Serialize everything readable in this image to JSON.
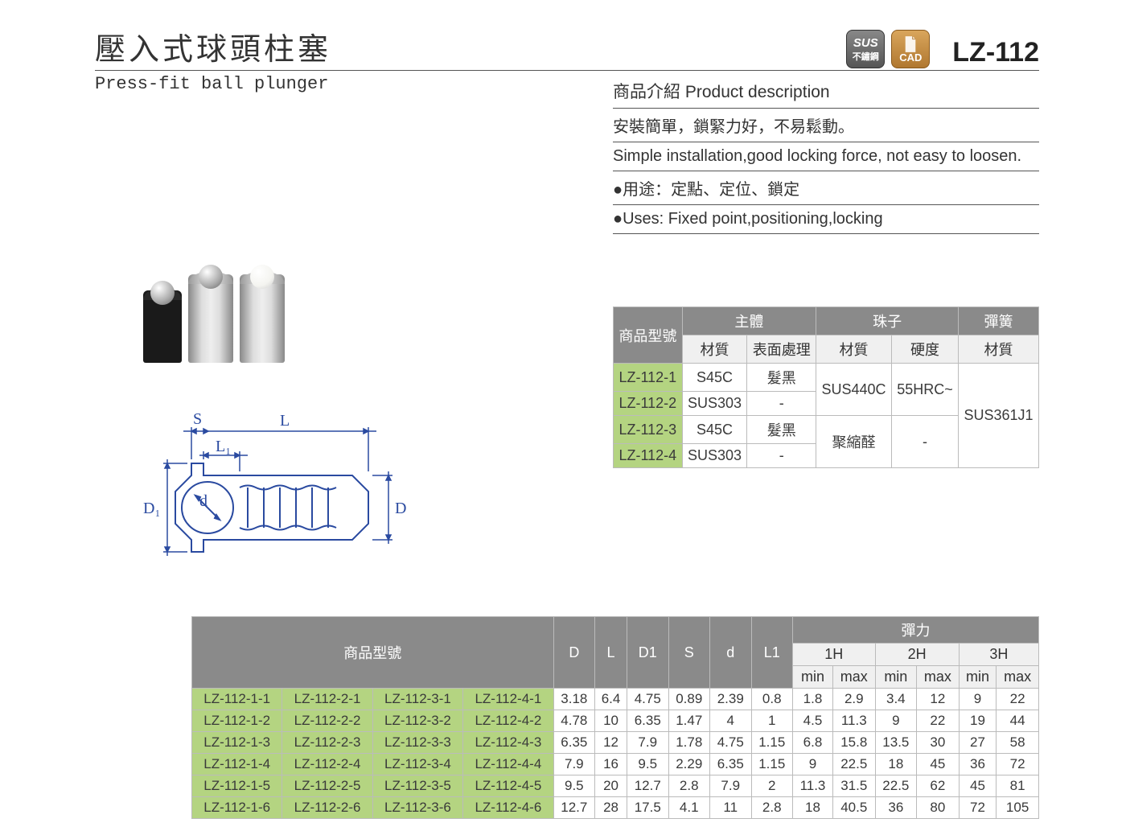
{
  "header": {
    "title_cn": "壓入式球頭柱塞",
    "model_code": "LZ-112",
    "badge_sus_top": "SUS",
    "badge_sus_bot": "不鏽鋼",
    "badge_cad": "CAD"
  },
  "subtitle": {
    "en": "Press-fit ball plunger"
  },
  "description": {
    "heading": "商品介紹 Product description",
    "line1": "安裝簡單，鎖緊力好，不易鬆動。",
    "line2": "Simple installation,good locking force, not easy to loosen.",
    "line3": "●用途：定點、定位、鎖定",
    "line4": "●Uses: Fixed point,positioning,locking"
  },
  "diagram_labels": {
    "S": "S",
    "L": "L",
    "L1": "L₁",
    "D1": "D₁",
    "d": "d",
    "D": "D"
  },
  "material_table": {
    "head_model": "商品型號",
    "head_body": "主體",
    "head_ball": "珠子",
    "head_spring": "彈簧",
    "sub_mat": "材質",
    "sub_surf": "表面處理",
    "sub_hard": "硬度",
    "rows": [
      {
        "model": "LZ-112-1",
        "body_mat": "S45C",
        "body_surf": "髮黑"
      },
      {
        "model": "LZ-112-2",
        "body_mat": "SUS303",
        "body_surf": "-"
      },
      {
        "model": "LZ-112-3",
        "body_mat": "S45C",
        "body_surf": "髮黑"
      },
      {
        "model": "LZ-112-4",
        "body_mat": "SUS303",
        "body_surf": "-"
      }
    ],
    "ball_mat_12": "SUS440C",
    "ball_hard_12": "55HRC~",
    "ball_mat_34": "聚縮醛",
    "ball_hard_34": "-",
    "spring_mat": "SUS361J1"
  },
  "spec_table": {
    "head_model": "商品型號",
    "head_D": "D",
    "head_L": "L",
    "head_D1": "D1",
    "head_S": "S",
    "head_d": "d",
    "head_L1": "L1",
    "head_force": "彈力",
    "h1": "1H",
    "h2": "2H",
    "h3": "3H",
    "min": "min",
    "max": "max",
    "rows": [
      {
        "m": [
          "LZ-112-1-1",
          "LZ-112-2-1",
          "LZ-112-3-1",
          "LZ-112-4-1"
        ],
        "v": [
          "3.18",
          "6.4",
          "4.75",
          "0.89",
          "2.39",
          "0.8",
          "1.8",
          "2.9",
          "3.4",
          "12",
          "9",
          "22"
        ]
      },
      {
        "m": [
          "LZ-112-1-2",
          "LZ-112-2-2",
          "LZ-112-3-2",
          "LZ-112-4-2"
        ],
        "v": [
          "4.78",
          "10",
          "6.35",
          "1.47",
          "4",
          "1",
          "4.5",
          "11.3",
          "9",
          "22",
          "19",
          "44"
        ]
      },
      {
        "m": [
          "LZ-112-1-3",
          "LZ-112-2-3",
          "LZ-112-3-3",
          "LZ-112-4-3"
        ],
        "v": [
          "6.35",
          "12",
          "7.9",
          "1.78",
          "4.75",
          "1.15",
          "6.8",
          "15.8",
          "13.5",
          "30",
          "27",
          "58"
        ]
      },
      {
        "m": [
          "LZ-112-1-4",
          "LZ-112-2-4",
          "LZ-112-3-4",
          "LZ-112-4-4"
        ],
        "v": [
          "7.9",
          "16",
          "9.5",
          "2.29",
          "6.35",
          "1.15",
          "9",
          "22.5",
          "18",
          "45",
          "36",
          "72"
        ]
      },
      {
        "m": [
          "LZ-112-1-5",
          "LZ-112-2-5",
          "LZ-112-3-5",
          "LZ-112-4-5"
        ],
        "v": [
          "9.5",
          "20",
          "12.7",
          "2.8",
          "7.9",
          "2",
          "11.3",
          "31.5",
          "22.5",
          "62",
          "45",
          "81"
        ]
      },
      {
        "m": [
          "LZ-112-1-6",
          "LZ-112-2-6",
          "LZ-112-3-6",
          "LZ-112-4-6"
        ],
        "v": [
          "12.7",
          "28",
          "17.5",
          "4.1",
          "11",
          "2.8",
          "18",
          "40.5",
          "36",
          "80",
          "72",
          "105"
        ]
      }
    ]
  },
  "colors": {
    "header_bg": "#8a8a8a",
    "model_bg": "#b4d481",
    "border": "#bbbbbb",
    "text": "#3a3a3a"
  }
}
